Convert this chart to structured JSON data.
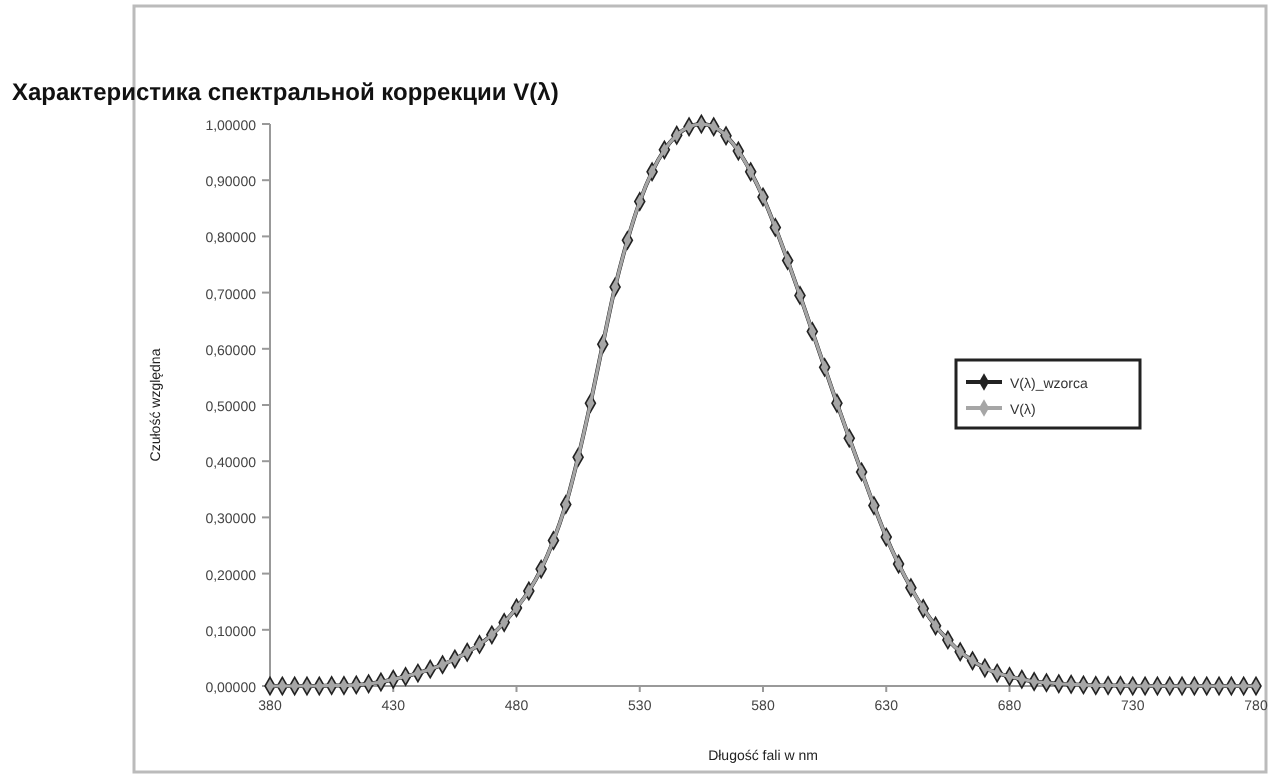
{
  "chart_data": {
    "type": "line",
    "title": "Характеристика спектральной коррекции V(λ)",
    "xlabel": "Długość fali w nm",
    "ylabel": "Czułość względna",
    "x": [
      380,
      385,
      390,
      395,
      400,
      405,
      410,
      415,
      420,
      425,
      430,
      435,
      440,
      445,
      450,
      455,
      460,
      465,
      470,
      475,
      480,
      485,
      490,
      495,
      500,
      505,
      510,
      515,
      520,
      525,
      530,
      535,
      540,
      545,
      550,
      555,
      560,
      565,
      570,
      575,
      580,
      585,
      590,
      595,
      600,
      605,
      610,
      615,
      620,
      625,
      630,
      635,
      640,
      645,
      650,
      655,
      660,
      665,
      670,
      675,
      680,
      685,
      690,
      695,
      700,
      705,
      710,
      715,
      720,
      725,
      730,
      735,
      740,
      745,
      750,
      755,
      760,
      765,
      770,
      775,
      780
    ],
    "series": [
      {
        "name": "V(λ)_wzorca",
        "color": "#222222",
        "values": [
          0.0,
          0.0,
          0.0,
          0.0,
          0.0,
          0.001,
          0.001,
          0.002,
          0.004,
          0.007,
          0.012,
          0.017,
          0.023,
          0.03,
          0.038,
          0.048,
          0.06,
          0.074,
          0.091,
          0.113,
          0.139,
          0.169,
          0.208,
          0.259,
          0.323,
          0.407,
          0.503,
          0.608,
          0.71,
          0.793,
          0.862,
          0.915,
          0.954,
          0.98,
          0.995,
          1.0,
          0.995,
          0.979,
          0.952,
          0.915,
          0.87,
          0.816,
          0.757,
          0.695,
          0.631,
          0.567,
          0.503,
          0.441,
          0.381,
          0.321,
          0.265,
          0.217,
          0.175,
          0.138,
          0.107,
          0.082,
          0.061,
          0.045,
          0.032,
          0.023,
          0.017,
          0.012,
          0.008,
          0.006,
          0.004,
          0.003,
          0.002,
          0.001,
          0.001,
          0.001,
          0.0,
          0.0,
          0.0,
          0.0,
          0.0,
          0.0,
          0.0,
          0.0,
          0.0,
          0.0,
          0.0
        ]
      },
      {
        "name": "V(λ)",
        "color": "#a6a6a6",
        "values": [
          0.0,
          0.0,
          0.0,
          0.0,
          0.0,
          0.001,
          0.001,
          0.002,
          0.004,
          0.007,
          0.012,
          0.017,
          0.023,
          0.03,
          0.038,
          0.048,
          0.06,
          0.074,
          0.091,
          0.113,
          0.139,
          0.169,
          0.208,
          0.259,
          0.323,
          0.407,
          0.503,
          0.608,
          0.71,
          0.793,
          0.862,
          0.915,
          0.954,
          0.98,
          0.995,
          1.0,
          0.995,
          0.979,
          0.952,
          0.915,
          0.87,
          0.816,
          0.757,
          0.695,
          0.631,
          0.567,
          0.503,
          0.441,
          0.381,
          0.321,
          0.265,
          0.217,
          0.175,
          0.138,
          0.107,
          0.082,
          0.061,
          0.045,
          0.032,
          0.023,
          0.017,
          0.012,
          0.008,
          0.006,
          0.004,
          0.003,
          0.002,
          0.001,
          0.001,
          0.001,
          0.0,
          0.0,
          0.0,
          0.0,
          0.0,
          0.0,
          0.0,
          0.0,
          0.0,
          0.0,
          0.0
        ]
      }
    ],
    "xlim": [
      380,
      780
    ],
    "xticks": [
      380,
      430,
      480,
      530,
      580,
      630,
      680,
      730,
      780
    ],
    "ylim": [
      0,
      1
    ],
    "yticks": [
      {
        "value": 0,
        "label": "0,00000"
      },
      {
        "value": 0.1,
        "label": "0,10000"
      },
      {
        "value": 0.2,
        "label": "0,20000"
      },
      {
        "value": 0.3,
        "label": "0,30000"
      },
      {
        "value": 0.4,
        "label": "0,40000"
      },
      {
        "value": 0.5,
        "label": "0,50000"
      },
      {
        "value": 0.6,
        "label": "0,60000"
      },
      {
        "value": 0.7,
        "label": "0,70000"
      },
      {
        "value": 0.8,
        "label": "0,80000"
      },
      {
        "value": 0.9,
        "label": "0,90000"
      },
      {
        "value": 1,
        "label": "1,00000"
      }
    ],
    "grid": false,
    "legend": "right",
    "marker": "diamond",
    "line_style": "solid"
  }
}
